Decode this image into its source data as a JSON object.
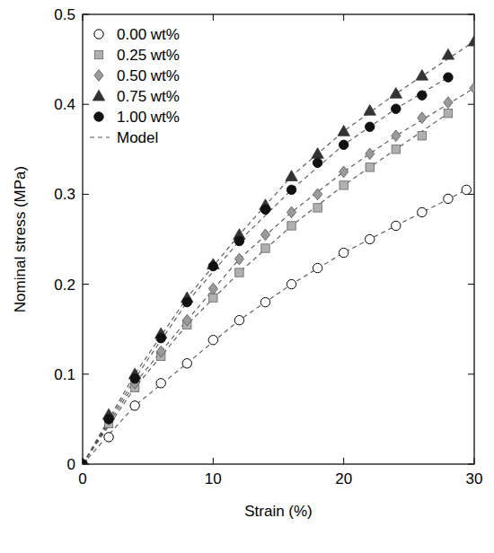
{
  "chart_data": {
    "type": "scatter",
    "x_label": "Strain (%)",
    "y_label": "Nominal stress (MPa)",
    "xlim": [
      0,
      30
    ],
    "ylim": [
      0,
      0.5
    ],
    "xticks": [
      0,
      10,
      20,
      30
    ],
    "yticks": [
      0,
      0.1,
      0.2,
      0.3,
      0.4,
      0.5
    ],
    "grid": false,
    "legend": "upper left",
    "series": [
      {
        "name": "0.00 wt%",
        "marker": "circle-open",
        "color": "#000000",
        "x": [
          0,
          2,
          4,
          6,
          8,
          10,
          12,
          14,
          16,
          18,
          20,
          22,
          24,
          26,
          28,
          29.4
        ],
        "values": [
          0,
          0.03,
          0.065,
          0.09,
          0.112,
          0.138,
          0.16,
          0.18,
          0.2,
          0.218,
          0.235,
          0.25,
          0.265,
          0.28,
          0.295,
          0.305
        ]
      },
      {
        "name": "0.25 wt%",
        "marker": "square",
        "color": "#b0b0b0",
        "x": [
          0,
          2,
          4,
          6,
          8,
          10,
          12,
          14,
          16,
          18,
          20,
          22,
          24,
          26,
          28
        ],
        "values": [
          0,
          0.045,
          0.085,
          0.12,
          0.155,
          0.185,
          0.213,
          0.24,
          0.265,
          0.285,
          0.31,
          0.33,
          0.35,
          0.365,
          0.39
        ]
      },
      {
        "name": "0.50 wt%",
        "marker": "diamond",
        "color": "#9a9a9a",
        "x": [
          0,
          2,
          4,
          6,
          8,
          10,
          12,
          14,
          16,
          18,
          20,
          22,
          24,
          26,
          28,
          30
        ],
        "values": [
          0,
          0.05,
          0.09,
          0.125,
          0.16,
          0.195,
          0.228,
          0.255,
          0.28,
          0.3,
          0.325,
          0.345,
          0.365,
          0.385,
          0.402,
          0.418
        ]
      },
      {
        "name": "0.75 wt%",
        "marker": "triangle",
        "color": "#333333",
        "x": [
          0,
          2,
          4,
          6,
          8,
          10,
          12,
          14,
          16,
          18,
          20,
          22,
          24,
          26,
          28,
          30
        ],
        "values": [
          0,
          0.055,
          0.1,
          0.145,
          0.185,
          0.222,
          0.255,
          0.288,
          0.32,
          0.345,
          0.37,
          0.393,
          0.412,
          0.432,
          0.455,
          0.47
        ]
      },
      {
        "name": "1.00 wt%",
        "marker": "circle",
        "color": "#111111",
        "x": [
          0,
          2,
          4,
          6,
          8,
          10,
          12,
          14,
          16,
          18,
          20,
          22,
          24,
          26,
          28
        ],
        "values": [
          0,
          0.05,
          0.095,
          0.14,
          0.18,
          0.22,
          0.248,
          0.283,
          0.305,
          0.335,
          0.355,
          0.375,
          0.395,
          0.41,
          0.43
        ]
      },
      {
        "name": "Model",
        "type": "line",
        "line_style": "dashed",
        "color": "#555555",
        "x": [
          0,
          4,
          8,
          12,
          16,
          20,
          24,
          29.4,
          null,
          0,
          4,
          8,
          12,
          16,
          20,
          24,
          28,
          null,
          0,
          4,
          8,
          12,
          16,
          20,
          24,
          30,
          null,
          0,
          4,
          8,
          12,
          16,
          20,
          24,
          30,
          null,
          0,
          4,
          8,
          12,
          16,
          20,
          24,
          28
        ],
        "values": [
          0,
          0.065,
          0.112,
          0.16,
          0.2,
          0.235,
          0.265,
          0.305,
          null,
          0,
          0.085,
          0.155,
          0.213,
          0.265,
          0.31,
          0.35,
          0.39,
          null,
          0,
          0.09,
          0.16,
          0.228,
          0.28,
          0.325,
          0.365,
          0.418,
          null,
          0,
          0.1,
          0.185,
          0.255,
          0.32,
          0.37,
          0.412,
          0.47,
          null,
          0,
          0.095,
          0.18,
          0.248,
          0.305,
          0.355,
          0.395,
          0.43
        ]
      }
    ]
  }
}
